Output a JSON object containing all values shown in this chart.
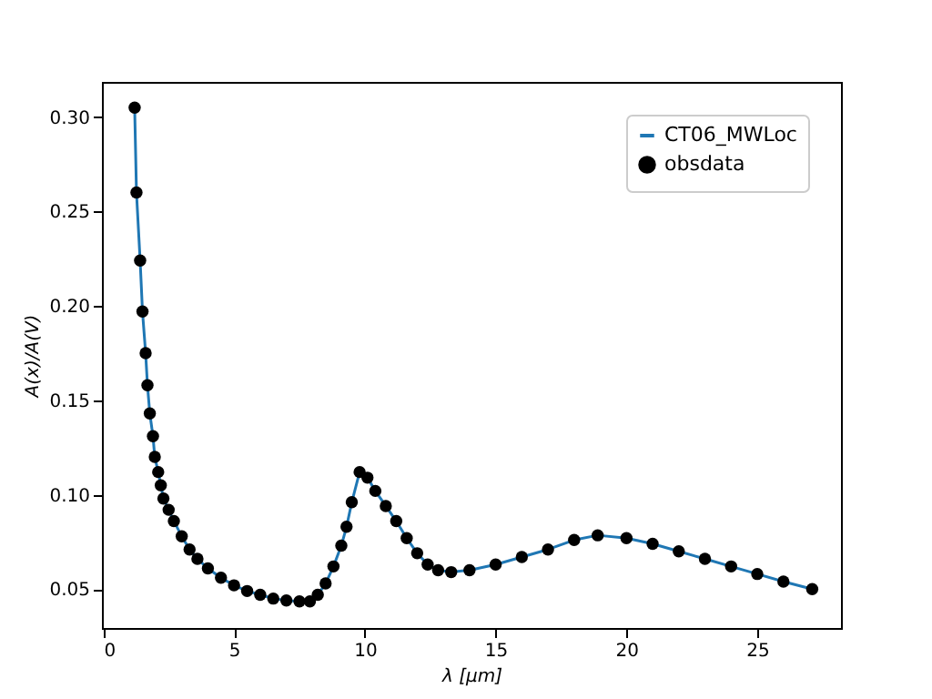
{
  "chart_data": {
    "type": "line",
    "xlabel": "λ [μm]",
    "ylabel": "A(x)/A(V)",
    "xlim": [
      -0.05,
      28.2
    ],
    "ylim": [
      0.0294,
      0.3186
    ],
    "xticks": [
      0,
      5,
      10,
      15,
      20,
      25
    ],
    "yticks": [
      {
        "value": 0.05,
        "label": "0.05"
      },
      {
        "value": 0.1,
        "label": "0.10"
      },
      {
        "value": 0.15,
        "label": "0.15"
      },
      {
        "value": 0.2,
        "label": "0.20"
      },
      {
        "value": 0.25,
        "label": "0.25"
      },
      {
        "value": 0.3,
        "label": "0.30"
      }
    ],
    "grid": false,
    "legend": "top right",
    "series": [
      {
        "name": "CT06_MWLoc",
        "type": "line",
        "color": "#1f77b4",
        "line_style": "solid",
        "x": [
          1.2,
          1.27,
          1.41,
          1.5,
          1.62,
          1.69,
          1.78,
          1.9,
          1.97,
          2.1,
          2.2,
          2.3,
          2.5,
          2.7,
          3.0,
          3.3,
          3.6,
          4.0,
          4.5,
          5.0,
          5.5,
          6.0,
          6.5,
          7.0,
          7.5,
          7.9,
          8.2,
          8.5,
          8.8,
          9.1,
          9.3,
          9.5,
          9.8,
          10.1,
          10.4,
          10.8,
          11.2,
          11.6,
          12.0,
          12.4,
          12.8,
          13.3,
          14.0,
          15.0,
          16.0,
          17.0,
          18.0,
          18.9,
          20.0,
          21.0,
          22.0,
          23.0,
          24.0,
          25.0,
          26.0,
          27.1
        ],
        "values": [
          0.305,
          0.26,
          0.224,
          0.197,
          0.175,
          0.158,
          0.143,
          0.131,
          0.12,
          0.112,
          0.105,
          0.098,
          0.092,
          0.086,
          0.078,
          0.071,
          0.066,
          0.061,
          0.056,
          0.052,
          0.049,
          0.047,
          0.045,
          0.044,
          0.0435,
          0.0435,
          0.047,
          0.053,
          0.062,
          0.073,
          0.083,
          0.096,
          0.112,
          0.109,
          0.102,
          0.094,
          0.086,
          0.077,
          0.069,
          0.063,
          0.06,
          0.059,
          0.06,
          0.063,
          0.067,
          0.071,
          0.076,
          0.0785,
          0.077,
          0.074,
          0.07,
          0.066,
          0.062,
          0.058,
          0.054,
          0.05
        ]
      },
      {
        "name": "obsdata",
        "type": "scatter",
        "color": "#000000",
        "marker": "circle",
        "x": [
          1.2,
          1.27,
          1.41,
          1.5,
          1.62,
          1.69,
          1.78,
          1.9,
          1.97,
          2.1,
          2.2,
          2.3,
          2.5,
          2.7,
          3.0,
          3.3,
          3.6,
          4.0,
          4.5,
          5.0,
          5.5,
          6.0,
          6.5,
          7.0,
          7.5,
          7.9,
          8.2,
          8.5,
          8.8,
          9.1,
          9.3,
          9.5,
          9.8,
          10.1,
          10.4,
          10.8,
          11.2,
          11.6,
          12.0,
          12.4,
          12.8,
          13.3,
          14.0,
          15.0,
          16.0,
          17.0,
          18.0,
          18.9,
          20.0,
          21.0,
          22.0,
          23.0,
          24.0,
          25.0,
          26.0,
          27.1
        ],
        "values": [
          0.305,
          0.26,
          0.224,
          0.197,
          0.175,
          0.158,
          0.143,
          0.131,
          0.12,
          0.112,
          0.105,
          0.098,
          0.092,
          0.086,
          0.078,
          0.071,
          0.066,
          0.061,
          0.056,
          0.052,
          0.049,
          0.047,
          0.045,
          0.044,
          0.0435,
          0.0435,
          0.047,
          0.053,
          0.062,
          0.073,
          0.083,
          0.096,
          0.112,
          0.109,
          0.102,
          0.094,
          0.086,
          0.077,
          0.069,
          0.063,
          0.06,
          0.059,
          0.06,
          0.063,
          0.067,
          0.071,
          0.076,
          0.0785,
          0.077,
          0.074,
          0.07,
          0.066,
          0.062,
          0.058,
          0.054,
          0.05
        ]
      }
    ]
  }
}
